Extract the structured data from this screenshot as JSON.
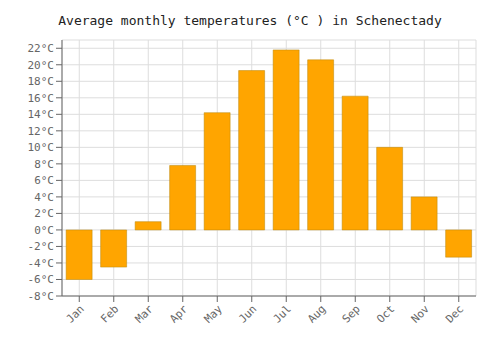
{
  "chart_data": {
    "type": "bar",
    "title": "Average monthly temperatures (°C ) in Schenectady",
    "categories": [
      "Jan",
      "Feb",
      "Mar",
      "Apr",
      "May",
      "Jun",
      "Jul",
      "Aug",
      "Sep",
      "Oct",
      "Nov",
      "Dec"
    ],
    "values": [
      -6.0,
      -4.5,
      1.0,
      7.8,
      14.2,
      19.3,
      21.8,
      20.6,
      16.2,
      10.0,
      4.0,
      -3.3
    ],
    "color": "#FFA500",
    "ylim": [
      -8,
      23
    ],
    "yticks": [
      {
        "value": -8,
        "label": "-8°C"
      },
      {
        "value": -6,
        "label": "-6°C"
      },
      {
        "value": -4,
        "label": "-4°C"
      },
      {
        "value": -2,
        "label": "-2°C"
      },
      {
        "value": 0,
        "label": "0°C"
      },
      {
        "value": 2,
        "label": "2°C"
      },
      {
        "value": 4,
        "label": "4°C"
      },
      {
        "value": 6,
        "label": "6°C"
      },
      {
        "value": 8,
        "label": "8°C"
      },
      {
        "value": 10,
        "label": "10°C"
      },
      {
        "value": 12,
        "label": "12°C"
      },
      {
        "value": 14,
        "label": "14°C"
      },
      {
        "value": 16,
        "label": "16°C"
      },
      {
        "value": 18,
        "label": "18°C"
      },
      {
        "value": 20,
        "label": "20°C"
      },
      {
        "value": 22,
        "label": "22°C"
      }
    ],
    "grid": true
  }
}
